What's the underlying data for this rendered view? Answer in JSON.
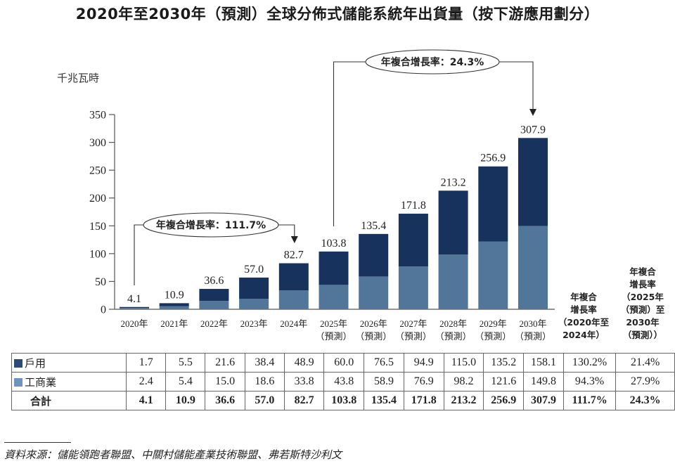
{
  "title": "2020年至2030年（預測）全球分佈式儲能系統年出貨量（按下游應用劃分）",
  "unit_label": "千兆瓦時",
  "colors": {
    "household": "#17325c",
    "commercial_industrial": "#52769a",
    "legend_household": "#2c4a75",
    "legend_commercial": "#6f93c0"
  },
  "chart_data": {
    "type": "bar",
    "stacked": true,
    "title": "2020年至2030年（預測）全球分佈式儲能系統年出貨量（按下游應用劃分）",
    "ylabel": "千兆瓦時",
    "xlabel": "",
    "ylim": [
      0,
      350
    ],
    "yticks": [
      0,
      50,
      100,
      150,
      200,
      250,
      300,
      350
    ],
    "grid": false,
    "legend": "table-below",
    "categories": [
      {
        "year": "2020年",
        "note": ""
      },
      {
        "year": "2021年",
        "note": ""
      },
      {
        "year": "2022年",
        "note": ""
      },
      {
        "year": "2023年",
        "note": ""
      },
      {
        "year": "2024年",
        "note": ""
      },
      {
        "year": "2025年",
        "note": "（預測）"
      },
      {
        "year": "2026年",
        "note": "（預測）"
      },
      {
        "year": "2027年",
        "note": "（預測）"
      },
      {
        "year": "2028年",
        "note": "（預測）"
      },
      {
        "year": "2029年",
        "note": "（預測）"
      },
      {
        "year": "2030年",
        "note": "（預測）"
      }
    ],
    "series": [
      {
        "name": "工商業",
        "key": "commercial_industrial",
        "values": [
          2.4,
          5.4,
          15.0,
          18.6,
          33.8,
          43.8,
          58.9,
          76.9,
          98.2,
          121.6,
          149.8
        ]
      },
      {
        "name": "戶用",
        "key": "household",
        "values": [
          1.7,
          5.5,
          21.6,
          38.4,
          48.9,
          60.0,
          76.5,
          94.9,
          115.0,
          135.2,
          158.1
        ]
      }
    ],
    "totals": [
      4.1,
      10.9,
      36.6,
      57.0,
      82.7,
      103.8,
      135.4,
      171.8,
      213.2,
      256.9,
      307.9
    ],
    "total_labels": [
      "4.1",
      "10.9",
      "36.6",
      "57.0",
      "82.7",
      "103.8",
      "135.4",
      "171.8",
      "213.2",
      "256.9",
      "307.9"
    ],
    "annotations": [
      {
        "text": "年複合增長率：111.7%",
        "from_category": 0,
        "to_category": 4
      },
      {
        "text": "年複合增長率：24.3%",
        "from_category": 5,
        "to_category": 10
      }
    ]
  },
  "cagr_headers": {
    "h1": [
      "年複合",
      "增長率",
      "（2020年至",
      "2024年）"
    ],
    "h2": [
      "年複合",
      "增長率",
      "（2025年",
      "（預測）至",
      "2030年",
      "（預測））"
    ]
  },
  "table": {
    "rows": [
      {
        "label": "戶用",
        "swatch": "household",
        "cells": [
          "1.7",
          "5.5",
          "21.6",
          "38.4",
          "48.9",
          "60.0",
          "76.5",
          "94.9",
          "115.0",
          "135.2",
          "158.1",
          "130.2%",
          "21.4%"
        ]
      },
      {
        "label": "工商業",
        "swatch": "commercial_industrial",
        "cells": [
          "2.4",
          "5.4",
          "15.0",
          "18.6",
          "33.8",
          "43.8",
          "58.9",
          "76.9",
          "98.2",
          "121.6",
          "149.8",
          "94.3%",
          "27.9%"
        ]
      },
      {
        "label": "合計",
        "swatch": "",
        "cells": [
          "4.1",
          "10.9",
          "36.6",
          "57.0",
          "82.7",
          "103.8",
          "135.4",
          "171.8",
          "213.2",
          "256.9",
          "307.9",
          "111.7%",
          "24.3%"
        ]
      }
    ]
  },
  "source": "資料來源：儲能領跑者聯盟、中關村儲能產業技術聯盟、弗若斯特沙利文"
}
